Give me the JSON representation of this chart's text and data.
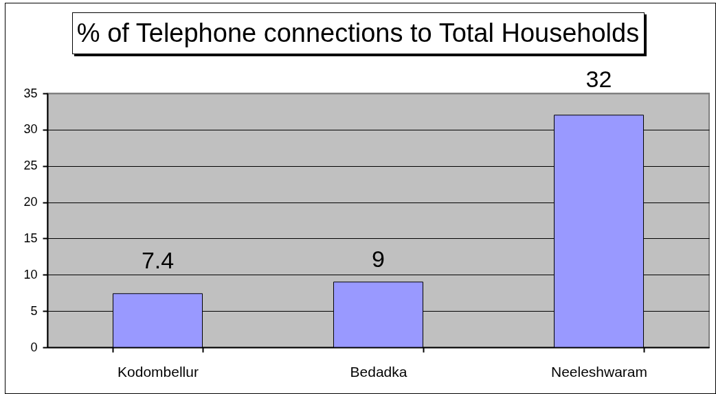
{
  "chart_data": {
    "type": "bar",
    "title": "% of Telephone connections to Total Households",
    "categories": [
      "Kodombellur",
      "Bedadka",
      "Neeleshwaram"
    ],
    "values": [
      7.4,
      9,
      32
    ],
    "color": "#9999ff",
    "ylim": [
      0,
      35
    ],
    "yticks": [
      0,
      5,
      10,
      15,
      20,
      25,
      30,
      35
    ],
    "grid": "y",
    "data_labels": true
  }
}
